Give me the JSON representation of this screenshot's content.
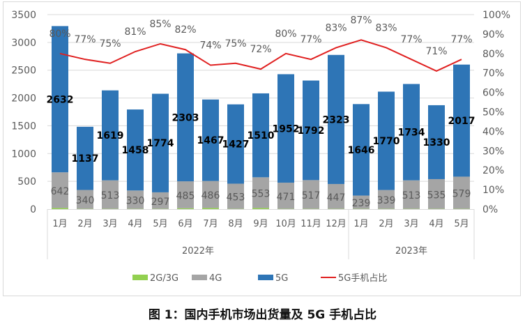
{
  "chart_data": {
    "type": "bar",
    "stacked": true,
    "title": "图 1：国内手机市场出货量及 5G 手机占比",
    "categories": [
      "1月",
      "2月",
      "3月",
      "4月",
      "5月",
      "6月",
      "7月",
      "8月",
      "9月",
      "10月",
      "11月",
      "12月",
      "1月",
      "2月",
      "3月",
      "4月",
      "5月"
    ],
    "groups": [
      {
        "label": "2022年",
        "count": 12
      },
      {
        "label": "2023年",
        "count": 5
      }
    ],
    "series": [
      {
        "name": "2G/3G",
        "color": "#92d050",
        "values": [
          20,
          5,
          5,
          5,
          5,
          15,
          20,
          5,
          20,
          5,
          5,
          5,
          5,
          5,
          5,
          5,
          5
        ]
      },
      {
        "name": "4G",
        "color": "#a5a5a5",
        "values": [
          642,
          340,
          513,
          330,
          297,
          485,
          486,
          453,
          553,
          471,
          517,
          447,
          239,
          339,
          513,
          535,
          579
        ]
      },
      {
        "name": "5G",
        "color": "#2e75b6",
        "values": [
          2632,
          1137,
          1619,
          1458,
          1774,
          2303,
          1467,
          1427,
          1510,
          1952,
          1792,
          2323,
          1646,
          1770,
          1734,
          1330,
          2017
        ]
      },
      {
        "name": "5G手机占比",
        "color": "#e02020",
        "type": "line",
        "axis": "right",
        "values": [
          80,
          77,
          75,
          81,
          85,
          82,
          74,
          75,
          72,
          80,
          77,
          83,
          87,
          83,
          77,
          71,
          77
        ]
      }
    ],
    "ylim": [
      0,
      3500
    ],
    "yticks": [
      "0",
      "500",
      "1000",
      "1500",
      "2000",
      "2500",
      "3000",
      "3500"
    ],
    "y2lim": [
      0,
      100
    ],
    "y2ticks": [
      "0%",
      "10%",
      "20%",
      "30%",
      "40%",
      "50%",
      "60%",
      "70%",
      "80%",
      "90%",
      "100%"
    ],
    "grid": true,
    "legend": "bottom"
  }
}
